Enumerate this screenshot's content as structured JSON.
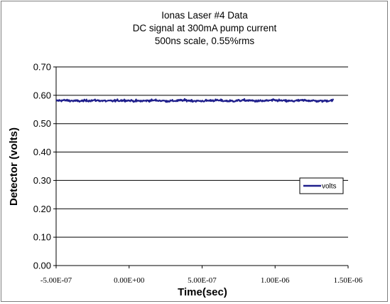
{
  "chart_data": {
    "type": "line",
    "title_lines": [
      "Ionas Laser #4 Data",
      "DC signal at 300mA pump current",
      "500ns scale, 0.55%rms"
    ],
    "xlabel": "Time(sec)",
    "ylabel": "Detector (volts)",
    "xlim": [
      -5e-07,
      1.5e-06
    ],
    "ylim": [
      0,
      0.7
    ],
    "x_ticks": [
      -5e-07,
      0,
      5e-07,
      1e-06,
      1.5e-06
    ],
    "x_tick_labels": [
      "-5.00E-07",
      "0.00E+00",
      "5.00E-07",
      "1.00E-06",
      "1.50E-06"
    ],
    "y_ticks": [
      0,
      0.1,
      0.2,
      0.3,
      0.4,
      0.5,
      0.6,
      0.7
    ],
    "y_tick_labels": [
      "0.00",
      "0.10",
      "0.20",
      "0.30",
      "0.40",
      "0.50",
      "0.60",
      "0.70"
    ],
    "grid": "horizontal major",
    "legend_position": "right",
    "series": [
      {
        "name": "volts",
        "color": "#1f1f8c",
        "x_start": -5e-07,
        "x_end": 1.4e-06,
        "mean": 0.581,
        "rms_fraction": 0.0055
      }
    ]
  }
}
